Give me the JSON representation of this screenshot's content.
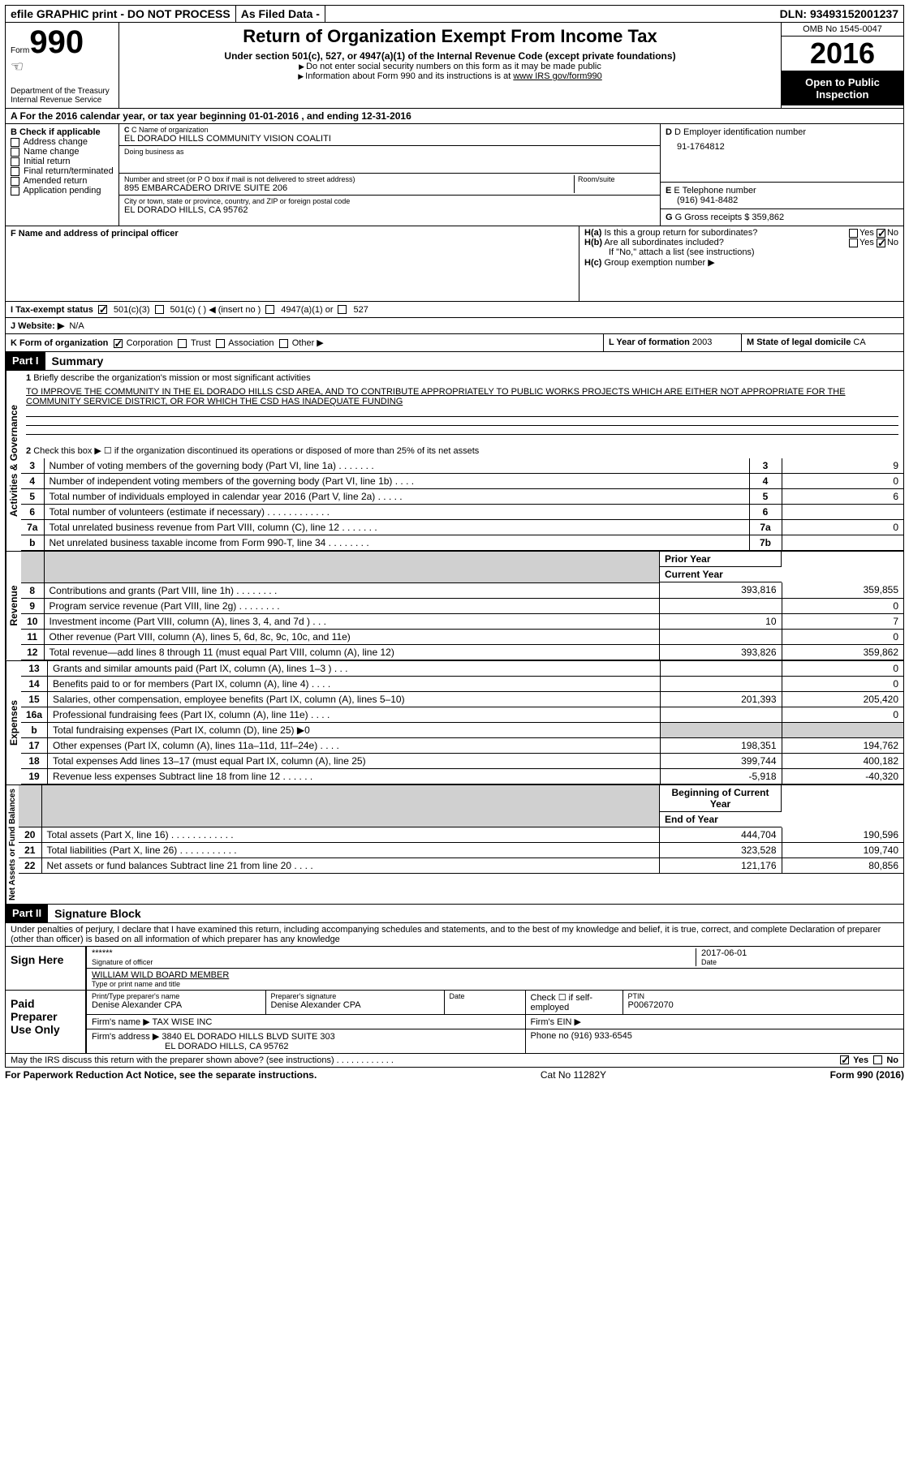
{
  "topbar": {
    "efile": "efile GRAPHIC print - DO NOT PROCESS",
    "asfiled": "As Filed Data -",
    "dln": "DLN: 93493152001237"
  },
  "header": {
    "form_label": "Form",
    "form_no": "990",
    "dept": "Department of the Treasury",
    "irs": "Internal Revenue Service",
    "title": "Return of Organization Exempt From Income Tax",
    "subtitle": "Under section 501(c), 527, or 4947(a)(1) of the Internal Revenue Code (except private foundations)",
    "note1": "Do not enter social security numbers on this form as it may be made public",
    "note2_pre": "Information about Form 990 and its instructions is at ",
    "note2_link": "www IRS gov/form990",
    "omb": "OMB No 1545-0047",
    "year": "2016",
    "open": "Open to Public Inspection"
  },
  "rowA": "A   For the 2016 calendar year, or tax year beginning 01-01-2016   , and ending 12-31-2016",
  "B": {
    "label": "B Check if applicable",
    "items": [
      "Address change",
      "Name change",
      "Initial return",
      "Final return/terminated",
      "Amended return",
      "Application pending"
    ]
  },
  "C": {
    "name_label": "C Name of organization",
    "name": "EL DORADO HILLS COMMUNITY VISION COALITI",
    "dba_label": "Doing business as",
    "street_label": "Number and street (or P O  box if mail is not delivered to street address)",
    "room_label": "Room/suite",
    "street": "895 EMBARCADERO DRIVE SUITE 206",
    "city_label": "City or town, state or province, country, and ZIP or foreign postal code",
    "city": "EL DORADO HILLS, CA  95762"
  },
  "D": {
    "label": "D Employer identification number",
    "val": "91-1764812"
  },
  "E": {
    "label": "E Telephone number",
    "val": "(916) 941-8482"
  },
  "G": {
    "label": "G Gross receipts $",
    "val": "359,862"
  },
  "F": {
    "label": "F  Name and address of principal officer"
  },
  "H": {
    "a": "Is this a group return for subordinates?",
    "b": "Are all subordinates included?",
    "bnote": "If \"No,\" attach a list  (see instructions)",
    "c": "Group exemption number ▶",
    "yes": "Yes",
    "no": "No"
  },
  "I": {
    "label": "I   Tax-exempt status",
    "opts": [
      "501(c)(3)",
      "501(c) (  ) ◀ (insert no )",
      "4947(a)(1) or",
      "527"
    ]
  },
  "J": {
    "label": "J   Website: ▶",
    "val": "N/A"
  },
  "K": {
    "label": "K Form of organization",
    "opts": [
      "Corporation",
      "Trust",
      "Association",
      "Other ▶"
    ]
  },
  "L": {
    "label": "L Year of formation",
    "val": "2003"
  },
  "M": {
    "label": "M State of legal domicile",
    "val": "CA"
  },
  "part1": {
    "hdr": "Part I",
    "title": "Summary",
    "l1": "Briefly describe the organization's mission or most significant activities",
    "mission": "TO IMPROVE THE COMMUNITY IN THE EL DORADO HILLS CSD AREA, AND TO CONTRIBUTE APPROPRIATELY TO PUBLIC WORKS PROJECTS WHICH ARE EITHER NOT APPROPRIATE FOR THE COMMUNITY SERVICE DISTRICT, OR FOR WHICH THE CSD HAS INADEQUATE FUNDING",
    "l2": "Check this box ▶ ☐ if the organization discontinued its operations or disposed of more than 25% of its net assets",
    "vert1": "Activities & Governance",
    "vert2": "Revenue",
    "vert3": "Expenses",
    "vert4": "Net Assets or Fund Balances",
    "rows_gov": [
      {
        "n": "3",
        "t": "Number of voting members of the governing body (Part VI, line 1a)  .   .   .   .   .   .   .",
        "b": "3",
        "v": "9"
      },
      {
        "n": "4",
        "t": "Number of independent voting members of the governing body (Part VI, line 1b)   .   .   .   .",
        "b": "4",
        "v": "0"
      },
      {
        "n": "5",
        "t": "Total number of individuals employed in calendar year 2016 (Part V, line 2a)   .   .   .   .   .",
        "b": "5",
        "v": "6"
      },
      {
        "n": "6",
        "t": "Total number of volunteers (estimate if necessary)   .   .   .   .   .   .   .   .   .   .   .   .",
        "b": "6",
        "v": ""
      },
      {
        "n": "7a",
        "t": "Total unrelated business revenue from Part VIII, column (C), line 12   .   .   .   .   .   .   .",
        "b": "7a",
        "v": "0"
      },
      {
        "n": "b",
        "t": "Net unrelated business taxable income from Form 990-T, line 34   .   .   .   .   .   .   .   .",
        "b": "7b",
        "v": ""
      }
    ],
    "col_prior": "Prior Year",
    "col_curr": "Current Year",
    "rows_rev": [
      {
        "n": "8",
        "t": "Contributions and grants (Part VIII, line 1h)   .   .   .   .   .   .   .   .",
        "p": "393,816",
        "c": "359,855"
      },
      {
        "n": "9",
        "t": "Program service revenue (Part VIII, line 2g)   .   .   .   .   .   .   .   .",
        "p": "",
        "c": "0"
      },
      {
        "n": "10",
        "t": "Investment income (Part VIII, column (A), lines 3, 4, and 7d )   .   .   .",
        "p": "10",
        "c": "7"
      },
      {
        "n": "11",
        "t": "Other revenue (Part VIII, column (A), lines 5, 6d, 8c, 9c, 10c, and 11e)",
        "p": "",
        "c": "0"
      },
      {
        "n": "12",
        "t": "Total revenue—add lines 8 through 11 (must equal Part VIII, column (A), line 12)",
        "p": "393,826",
        "c": "359,862"
      }
    ],
    "rows_exp": [
      {
        "n": "13",
        "t": "Grants and similar amounts paid (Part IX, column (A), lines 1–3 )   .   .   .",
        "p": "",
        "c": "0"
      },
      {
        "n": "14",
        "t": "Benefits paid to or for members (Part IX, column (A), line 4)   .   .   .   .",
        "p": "",
        "c": "0"
      },
      {
        "n": "15",
        "t": "Salaries, other compensation, employee benefits (Part IX, column (A), lines 5–10)",
        "p": "201,393",
        "c": "205,420"
      },
      {
        "n": "16a",
        "t": "Professional fundraising fees (Part IX, column (A), line 11e)   .   .   .   .",
        "p": "",
        "c": "0"
      },
      {
        "n": "b",
        "t": "Total fundraising expenses (Part IX, column (D), line 25) ▶0",
        "p": "GREY",
        "c": "GREY"
      },
      {
        "n": "17",
        "t": "Other expenses (Part IX, column (A), lines 11a–11d, 11f–24e)   .   .   .   .",
        "p": "198,351",
        "c": "194,762"
      },
      {
        "n": "18",
        "t": "Total expenses  Add lines 13–17 (must equal Part IX, column (A), line 25)",
        "p": "399,744",
        "c": "400,182"
      },
      {
        "n": "19",
        "t": "Revenue less expenses  Subtract line 18 from line 12   .   .   .   .   .   .",
        "p": "-5,918",
        "c": "-40,320"
      }
    ],
    "col_beg": "Beginning of Current Year",
    "col_end": "End of Year",
    "rows_net": [
      {
        "n": "20",
        "t": "Total assets (Part X, line 16)   .   .   .   .   .   .   .   .   .   .   .   .",
        "p": "444,704",
        "c": "190,596"
      },
      {
        "n": "21",
        "t": "Total liabilities (Part X, line 26)   .   .   .   .   .   .   .   .   .   .   .",
        "p": "323,528",
        "c": "109,740"
      },
      {
        "n": "22",
        "t": "Net assets or fund balances  Subtract line 21 from line 20   .   .   .   .",
        "p": "121,176",
        "c": "80,856"
      }
    ]
  },
  "part2": {
    "hdr": "Part II",
    "title": "Signature Block",
    "decl": "Under penalties of perjury, I declare that I have examined this return, including accompanying schedules and statements, and to the best of my knowledge and belief, it is true, correct, and complete  Declaration of preparer (other than officer) is based on all information of which preparer has any knowledge",
    "sign": "Sign Here",
    "sig_stars": "******",
    "sig_of": "Signature of officer",
    "sig_date": "2017-06-01",
    "date_lbl": "Date",
    "officer": "WILLIAM WILD BOARD MEMBER",
    "typename": "Type or print name and title",
    "paid": "Paid Preparer Use Only",
    "prep_name_lbl": "Print/Type preparer's name",
    "prep_name": "Denise Alexander CPA",
    "prep_sig_lbl": "Preparer's signature",
    "prep_sig": "Denise Alexander CPA",
    "prep_date_lbl": "Date",
    "prep_check": "Check ☐ if self-employed",
    "ptin_lbl": "PTIN",
    "ptin": "P00672070",
    "firm_lbl": "Firm's name   ▶",
    "firm": "TAX WISE INC",
    "ein_lbl": "Firm's EIN ▶",
    "addr_lbl": "Firm's address ▶",
    "addr1": "3840 EL DORADO HILLS BLVD SUITE 303",
    "addr2": "EL DORADO HILLS, CA  95762",
    "phone_lbl": "Phone no",
    "phone": "(916) 933-6545",
    "discuss": "May the IRS discuss this return with the preparer shown above? (see instructions)   .   .   .   .   .   .   .   .   .   .   .   .",
    "yes": "Yes",
    "no": "No"
  },
  "footer": {
    "pra": "For Paperwork Reduction Act Notice, see the separate instructions.",
    "cat": "Cat No 11282Y",
    "form": "Form 990 (2016)"
  }
}
